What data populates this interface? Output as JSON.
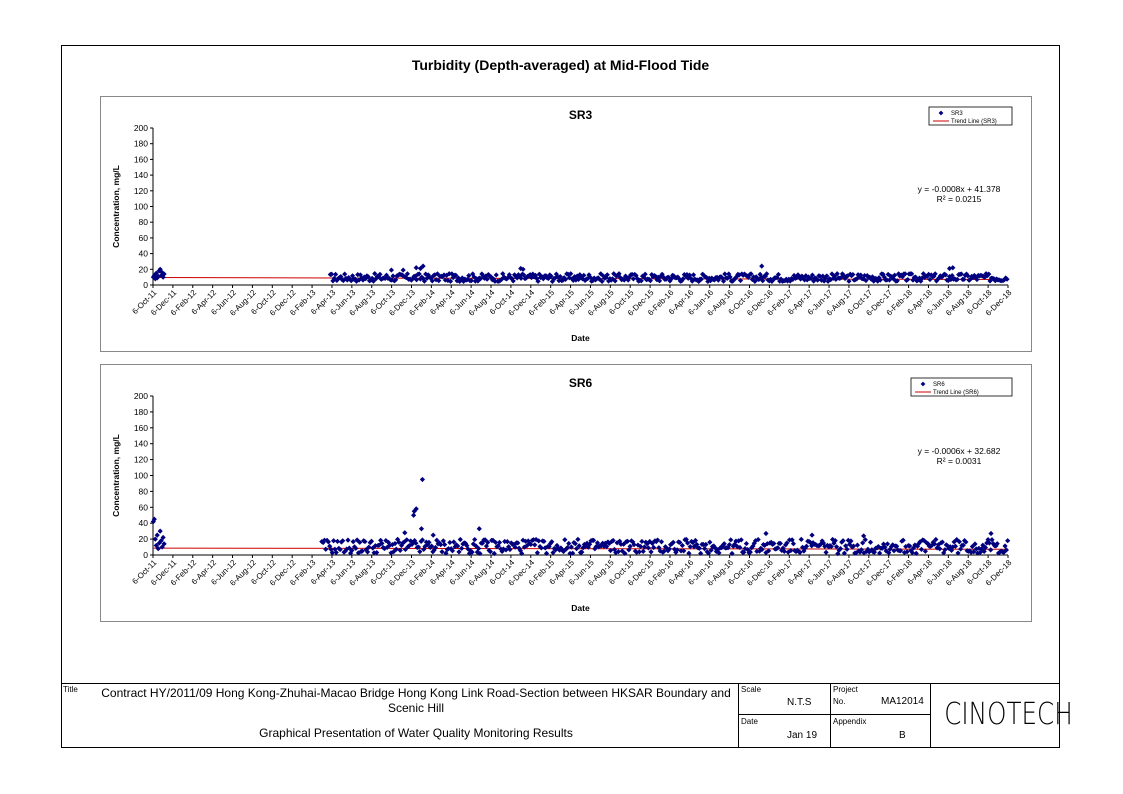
{
  "page": {
    "main_title": "Turbidity (Depth-averaged) at Mid-Flood Tide"
  },
  "title_block": {
    "title_label": "Title",
    "title_text": "Contract HY/2011/09 Hong Kong-Zhuhai-Macao Bridge Hong Kong Link Road-Section between HKSAR Boundary and Scenic Hill",
    "subtitle_text": "Graphical Presentation of Water Quality Monitoring Results",
    "scale_label": "Scale",
    "scale_value": "N.T.S",
    "project_label": "Project",
    "project_no_label": "No.",
    "project_no_value": "MA12014",
    "date_label": "Date",
    "date_value": "Jan 19",
    "appendix_label": "Appendix",
    "appendix_value": "B",
    "logo_text": "CINOTECH"
  },
  "chart_data": [
    {
      "type": "scatter",
      "title": "SR3",
      "xlabel": "Date",
      "ylabel": "Concentration, mg/L",
      "ylim": [
        0,
        200
      ],
      "yticks": [
        0,
        20,
        40,
        60,
        80,
        100,
        120,
        140,
        160,
        180,
        200
      ],
      "xticks": [
        "6-Oct-11",
        "6-Dec-11",
        "6-Feb-12",
        "6-Apr-12",
        "6-Jun-12",
        "6-Aug-12",
        "6-Oct-12",
        "6-Dec-12",
        "6-Feb-13",
        "6-Apr-13",
        "6-Jun-13",
        "6-Aug-13",
        "6-Oct-13",
        "6-Dec-13",
        "6-Feb-14",
        "6-Apr-14",
        "6-Jun-14",
        "6-Aug-14",
        "6-Oct-14",
        "6-Dec-14",
        "6-Feb-15",
        "6-Apr-15",
        "6-Jun-15",
        "6-Aug-15",
        "6-Oct-15",
        "6-Dec-15",
        "6-Feb-16",
        "6-Apr-16",
        "6-Jun-16",
        "6-Aug-16",
        "6-Oct-16",
        "6-Dec-16",
        "6-Feb-17",
        "6-Apr-17",
        "6-Jun-17",
        "6-Aug-17",
        "6-Oct-17",
        "6-Dec-17",
        "6-Feb-18",
        "6-Apr-18",
        "6-Jun-18",
        "6-Aug-18",
        "6-Oct-18",
        "6-Dec-18"
      ],
      "legend": [
        "SR3",
        "Trend Line (SR3)"
      ],
      "legend_position": "top-right",
      "equation": "y = -0.0008x + 41.378",
      "r2": "R² = 0.0215",
      "series": [
        {
          "name": "SR3",
          "color": "#00007f",
          "points": [
            [
              "2011-10-07",
              10
            ],
            [
              "2011-10-10",
              12
            ],
            [
              "2011-10-13",
              8
            ],
            [
              "2011-10-16",
              15
            ],
            [
              "2011-10-19",
              9
            ],
            [
              "2011-10-22",
              11
            ],
            [
              "2011-10-25",
              18
            ],
            [
              "2011-10-28",
              20
            ],
            [
              "2011-10-31",
              12
            ],
            [
              "2011-11-03",
              16
            ],
            [
              "2011-11-06",
              10
            ],
            [
              "2011-11-09",
              14
            ],
            [
              "2013-12-20",
              22
            ],
            [
              "2014-01-02",
              21
            ],
            [
              "2014-01-10",
              24
            ],
            [
              "2013-11-10",
              19
            ],
            [
              "2013-10-05",
              19
            ],
            [
              "2014-11-05",
              21
            ],
            [
              "2014-11-12",
              20
            ],
            [
              "2016-11-12",
              24
            ],
            [
              "2018-06-10",
              21
            ],
            [
              "2018-06-20",
              22
            ]
          ],
          "baseline_range": [
            "2013-04-01",
            "2018-12-06"
          ],
          "baseline_level": 8,
          "baseline_spread": 5
        },
        {
          "name": "Trend Line (SR3)",
          "color": "#cc0000",
          "line": [
            [
              "2011-10-06",
              9.5
            ],
            [
              "2018-12-06",
              7.0
            ]
          ]
        }
      ]
    },
    {
      "type": "scatter",
      "title": "SR6",
      "xlabel": "Date",
      "ylabel": "Concentration, mg/L",
      "ylim": [
        0,
        200
      ],
      "yticks": [
        0,
        20,
        40,
        60,
        80,
        100,
        120,
        140,
        160,
        180,
        200
      ],
      "xticks": [
        "6-Oct-11",
        "6-Dec-11",
        "6-Feb-12",
        "6-Apr-12",
        "6-Jun-12",
        "6-Aug-12",
        "6-Oct-12",
        "6-Dec-12",
        "6-Feb-13",
        "6-Apr-13",
        "6-Jun-13",
        "6-Aug-13",
        "6-Oct-13",
        "6-Dec-13",
        "6-Feb-14",
        "6-Apr-14",
        "6-Jun-14",
        "6-Aug-14",
        "6-Oct-14",
        "6-Dec-14",
        "6-Feb-15",
        "6-Apr-15",
        "6-Jun-15",
        "6-Aug-15",
        "6-Oct-15",
        "6-Dec-15",
        "6-Feb-16",
        "6-Apr-16",
        "6-Jun-16",
        "6-Aug-16",
        "6-Oct-16",
        "6-Dec-16",
        "6-Feb-17",
        "6-Apr-17",
        "6-Jun-17",
        "6-Aug-17",
        "6-Oct-17",
        "6-Dec-17",
        "6-Feb-18",
        "6-Apr-18",
        "6-Jun-18",
        "6-Aug-18",
        "6-Oct-18",
        "6-Dec-18"
      ],
      "legend": [
        "SR6",
        "Trend Line (SR6)"
      ],
      "legend_position": "top-right",
      "equation": "y = -0.0006x + 32.682",
      "r2": "R² = 0.0031",
      "series": [
        {
          "name": "SR6",
          "color": "#00007f",
          "points": [
            [
              "2011-10-07",
              42
            ],
            [
              "2011-10-10",
              45
            ],
            [
              "2011-10-13",
              20
            ],
            [
              "2011-10-16",
              12
            ],
            [
              "2011-10-19",
              25
            ],
            [
              "2011-10-22",
              8
            ],
            [
              "2011-10-25",
              15
            ],
            [
              "2011-10-28",
              30
            ],
            [
              "2011-10-31",
              18
            ],
            [
              "2011-11-03",
              10
            ],
            [
              "2011-11-06",
              22
            ],
            [
              "2011-11-09",
              14
            ],
            [
              "2013-12-12",
              50
            ],
            [
              "2013-12-14",
              55
            ],
            [
              "2013-12-20",
              58
            ],
            [
              "2014-01-08",
              95
            ],
            [
              "2014-01-05",
              33
            ],
            [
              "2014-07-01",
              33
            ],
            [
              "2013-11-15",
              28
            ],
            [
              "2014-02-10",
              25
            ],
            [
              "2016-11-25",
              27
            ],
            [
              "2017-04-15",
              25
            ],
            [
              "2017-09-20",
              24
            ],
            [
              "2018-10-15",
              27
            ]
          ],
          "baseline_range": [
            "2013-03-06",
            "2018-12-06"
          ],
          "baseline_level": 8,
          "baseline_spread": 9
        },
        {
          "name": "Trend Line (SR6)",
          "color": "#cc0000",
          "line": [
            [
              "2011-10-06",
              8.7
            ],
            [
              "2018-12-06",
              7.2
            ]
          ]
        }
      ]
    }
  ]
}
